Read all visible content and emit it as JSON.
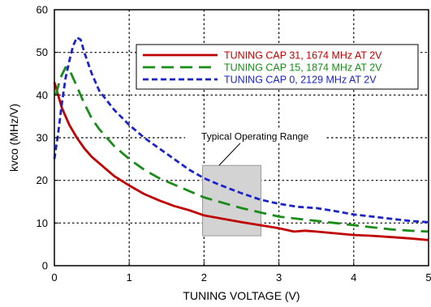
{
  "chart_data": {
    "type": "line",
    "title": "",
    "xlabel": "TUNING VOLTAGE (V)",
    "ylabel": "kvco (MHz/V)",
    "xlim": [
      0,
      5
    ],
    "ylim": [
      0,
      60
    ],
    "x_ticks": [
      "0",
      "1",
      "2",
      "3",
      "4",
      "5"
    ],
    "y_ticks": [
      "0",
      "10",
      "20",
      "30",
      "40",
      "50",
      "60"
    ],
    "grid": "dotted",
    "legend_position": "top-right",
    "series": [
      {
        "name": "TUNING CAP 31, 1674 MHz AT 2V",
        "color": "#c00000",
        "dash": "solid",
        "points": [
          [
            0,
            43
          ],
          [
            0.1,
            37
          ],
          [
            0.2,
            33
          ],
          [
            0.3,
            30
          ],
          [
            0.4,
            27.5
          ],
          [
            0.5,
            25.5
          ],
          [
            0.6,
            24
          ],
          [
            0.8,
            21
          ],
          [
            1.0,
            18.8
          ],
          [
            1.2,
            16.8
          ],
          [
            1.4,
            15.3
          ],
          [
            1.6,
            14.0
          ],
          [
            1.8,
            13.0
          ],
          [
            2.0,
            11.8
          ],
          [
            2.25,
            11.0
          ],
          [
            2.5,
            10.2
          ],
          [
            2.75,
            9.5
          ],
          [
            3.0,
            8.8
          ],
          [
            3.2,
            8.0
          ],
          [
            3.35,
            8.2
          ],
          [
            3.5,
            8.0
          ],
          [
            3.75,
            7.6
          ],
          [
            4.0,
            7.2
          ],
          [
            4.25,
            7.0
          ],
          [
            4.5,
            6.7
          ],
          [
            4.75,
            6.4
          ],
          [
            5.0,
            6.0
          ]
        ]
      },
      {
        "name": "TUNING CAP 15, 1874 MHz AT 2V",
        "color": "#1a8c1a",
        "dash": "long-dash",
        "points": [
          [
            0.02,
            40
          ],
          [
            0.08,
            44
          ],
          [
            0.15,
            46.5
          ],
          [
            0.2,
            46
          ],
          [
            0.3,
            42
          ],
          [
            0.4,
            38
          ],
          [
            0.5,
            34.5
          ],
          [
            0.6,
            32
          ],
          [
            0.8,
            28
          ],
          [
            1.0,
            25
          ],
          [
            1.2,
            22.5
          ],
          [
            1.4,
            20.5
          ],
          [
            1.6,
            19
          ],
          [
            1.8,
            17.5
          ],
          [
            2.0,
            16
          ],
          [
            2.2,
            15
          ],
          [
            2.5,
            13.5
          ],
          [
            2.75,
            12.5
          ],
          [
            3.0,
            11.5
          ],
          [
            3.25,
            11
          ],
          [
            3.5,
            10.5
          ],
          [
            3.75,
            10
          ],
          [
            4.0,
            9.5
          ],
          [
            4.25,
            9
          ],
          [
            4.5,
            8.5
          ],
          [
            4.75,
            8.2
          ],
          [
            5.0,
            8.0
          ]
        ]
      },
      {
        "name": "TUNING CAP   0, 2129 MHz AT 2V",
        "color": "#1c24c8",
        "dash": "short-dash",
        "points": [
          [
            0,
            25
          ],
          [
            0.05,
            31
          ],
          [
            0.1,
            38
          ],
          [
            0.15,
            44
          ],
          [
            0.2,
            48
          ],
          [
            0.25,
            51.5
          ],
          [
            0.3,
            53.5
          ],
          [
            0.35,
            53
          ],
          [
            0.4,
            50
          ],
          [
            0.5,
            45
          ],
          [
            0.6,
            41
          ],
          [
            0.8,
            36.5
          ],
          [
            1.0,
            33
          ],
          [
            1.2,
            30
          ],
          [
            1.4,
            27.5
          ],
          [
            1.6,
            25
          ],
          [
            1.8,
            22.5
          ],
          [
            2.0,
            20.5
          ],
          [
            2.2,
            19
          ],
          [
            2.5,
            17
          ],
          [
            2.75,
            15.5
          ],
          [
            3.0,
            14.5
          ],
          [
            3.25,
            13.8
          ],
          [
            3.5,
            13.5
          ],
          [
            3.75,
            12.8
          ],
          [
            4.0,
            12
          ],
          [
            4.25,
            11.5
          ],
          [
            4.5,
            11
          ],
          [
            4.75,
            10.5
          ],
          [
            5.0,
            10.2
          ]
        ]
      }
    ],
    "annotations": [
      {
        "text": "Typical Operating Range",
        "region": {
          "x": [
            1.98,
            2.76
          ],
          "y": [
            7,
            23.5
          ]
        },
        "color": "#d3d3d3"
      }
    ]
  }
}
